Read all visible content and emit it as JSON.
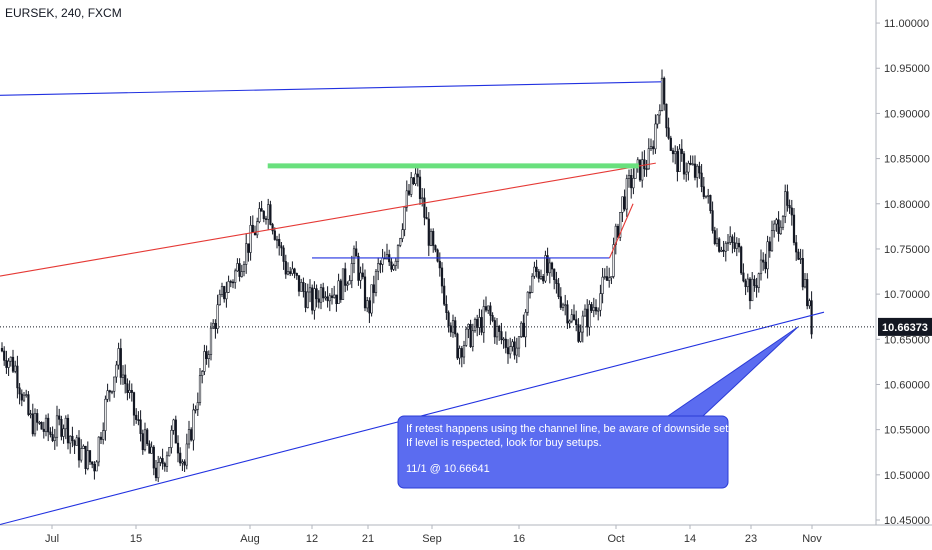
{
  "header": {
    "symbol": "EURSEK, 240, FXCM"
  },
  "chart_data": {
    "type": "candlestick",
    "symbol": "EURSEK",
    "interval": "240",
    "source": "FXCM",
    "ylim": [
      10.45,
      11.02
    ],
    "y_ticks": [
      "11.00000",
      "10.95000",
      "10.90000",
      "10.85000",
      "10.80000",
      "10.75000",
      "10.70000",
      "10.65000",
      "10.60000",
      "10.55000",
      "10.50000",
      "10.45000"
    ],
    "x_ticks": [
      "Jul",
      "15",
      "Aug",
      "12",
      "21",
      "Sep",
      "16",
      "Oct",
      "14",
      "23",
      "Nov"
    ],
    "last_price": "10.66373",
    "closes_path": [
      {
        "x": "Jun 24",
        "y": 10.64
      },
      {
        "x": "Jun 26",
        "y": 10.62
      },
      {
        "x": "Jun 28",
        "y": 10.56
      },
      {
        "x": "Jul 1",
        "y": 10.545
      },
      {
        "x": "Jul 3",
        "y": 10.56
      },
      {
        "x": "Jul 5",
        "y": 10.53
      },
      {
        "x": "Jul 8",
        "y": 10.51
      },
      {
        "x": "Jul 10",
        "y": 10.58
      },
      {
        "x": "Jul 12",
        "y": 10.63
      },
      {
        "x": "Jul 15",
        "y": 10.56
      },
      {
        "x": "Jul 17",
        "y": 10.53
      },
      {
        "x": "Jul 19",
        "y": 10.5
      },
      {
        "x": "Jul 22",
        "y": 10.55
      },
      {
        "x": "Jul 24",
        "y": 10.51
      },
      {
        "x": "Jul 26",
        "y": 10.58
      },
      {
        "x": "Jul 29",
        "y": 10.66
      },
      {
        "x": "Jul 31",
        "y": 10.7
      },
      {
        "x": "Aug 2",
        "y": 10.72
      },
      {
        "x": "Aug 5",
        "y": 10.76
      },
      {
        "x": "Aug 7",
        "y": 10.8
      },
      {
        "x": "Aug 9",
        "y": 10.73
      },
      {
        "x": "Aug 12",
        "y": 10.69
      },
      {
        "x": "Aug 14",
        "y": 10.71
      },
      {
        "x": "Aug 16",
        "y": 10.7
      },
      {
        "x": "Aug 19",
        "y": 10.74
      },
      {
        "x": "Aug 21",
        "y": 10.68
      },
      {
        "x": "Aug 23",
        "y": 10.73
      },
      {
        "x": "Aug 26",
        "y": 10.74
      },
      {
        "x": "Aug 28",
        "y": 10.8
      },
      {
        "x": "Aug 30",
        "y": 10.83
      },
      {
        "x": "Sep 2",
        "y": 10.75
      },
      {
        "x": "Sep 4",
        "y": 10.7
      },
      {
        "x": "Sep 6",
        "y": 10.64
      },
      {
        "x": "Sep 9",
        "y": 10.66
      },
      {
        "x": "Sep 11",
        "y": 10.68
      },
      {
        "x": "Sep 13",
        "y": 10.65
      },
      {
        "x": "Sep 16",
        "y": 10.64
      },
      {
        "x": "Sep 18",
        "y": 10.72
      },
      {
        "x": "Sep 20",
        "y": 10.73
      },
      {
        "x": "Sep 23",
        "y": 10.69
      },
      {
        "x": "Sep 25",
        "y": 10.66
      },
      {
        "x": "Sep 27",
        "y": 10.68
      },
      {
        "x": "Sep 30",
        "y": 10.72
      },
      {
        "x": "Oct 2",
        "y": 10.8
      },
      {
        "x": "Oct 4",
        "y": 10.83
      },
      {
        "x": "Oct 7",
        "y": 10.85
      },
      {
        "x": "Oct 9",
        "y": 10.93
      },
      {
        "x": "Oct 11",
        "y": 10.85
      },
      {
        "x": "Oct 14",
        "y": 10.84
      },
      {
        "x": "Oct 16",
        "y": 10.82
      },
      {
        "x": "Oct 18",
        "y": 10.76
      },
      {
        "x": "Oct 21",
        "y": 10.75
      },
      {
        "x": "Oct 23",
        "y": 10.7
      },
      {
        "x": "Oct 25",
        "y": 10.74
      },
      {
        "x": "Oct 28",
        "y": 10.8
      },
      {
        "x": "Oct 30",
        "y": 10.75
      },
      {
        "x": "Nov 1",
        "y": 10.66373
      }
    ],
    "trendlines": [
      {
        "color": "#2131e0",
        "from": {
          "x": "Jun 24",
          "y": 10.92
        },
        "to": {
          "x": "Oct 9",
          "y": 10.935
        }
      },
      {
        "color": "#e53935",
        "from": {
          "x": "Jun 24",
          "y": 10.72
        },
        "to": {
          "x": "Oct 8",
          "y": 10.845
        }
      },
      {
        "color": "#2131e0",
        "from": {
          "x": "Jun 24",
          "y": 10.445
        },
        "to": {
          "x": "Nov 3",
          "y": 10.68
        }
      },
      {
        "color": "#2131e0",
        "from": {
          "x": "Aug 12",
          "y": 10.74
        },
        "to": {
          "x": "Sep 30",
          "y": 10.74
        }
      },
      {
        "color": "#e53935",
        "from": {
          "x": "Sep 30",
          "y": 10.74
        },
        "to": {
          "x": "Oct 4",
          "y": 10.8
        }
      },
      {
        "color": "#69e07d",
        "from": {
          "x": "Aug 7",
          "y": 10.842
        },
        "to": {
          "x": "Oct 5",
          "y": 10.842
        }
      }
    ],
    "annotation": {
      "lines": [
        "If retest happens using the channel line, be aware of downside setups.",
        "If level is respected, look for buy setups.",
        "11/1 @ 10.66641"
      ],
      "color": "#5b6cf0"
    }
  }
}
